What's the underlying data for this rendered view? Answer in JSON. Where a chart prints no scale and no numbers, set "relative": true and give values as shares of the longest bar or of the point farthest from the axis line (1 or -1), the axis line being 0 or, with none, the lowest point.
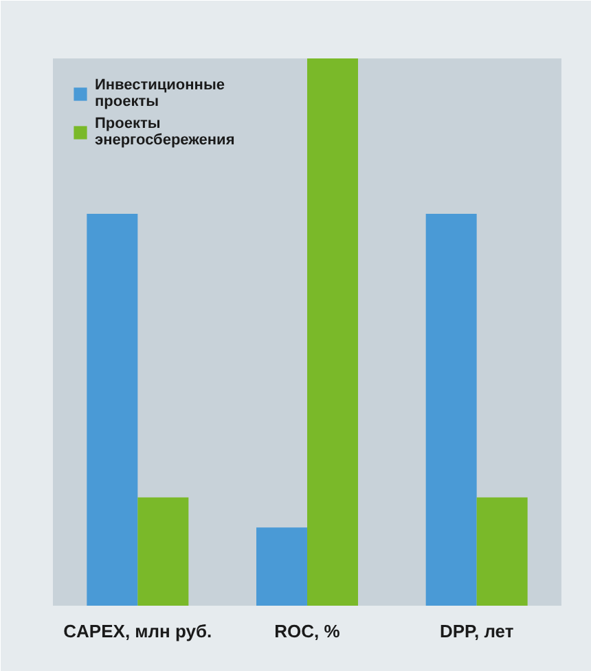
{
  "chart_data": {
    "type": "bar",
    "relative": true,
    "categories": [
      "CAPEX, млн руб.",
      "ROC, %",
      "DPP, лет"
    ],
    "series": [
      {
        "name": "Инвестиционные проекты",
        "color": "#4a9ad6",
        "values": [
          0.716,
          0.143,
          0.716
        ]
      },
      {
        "name": "Проекты энергосбережения",
        "color": "#7ab929",
        "values": [
          0.198,
          1,
          0.198
        ]
      }
    ],
    "legend": "top left",
    "grid": false
  }
}
